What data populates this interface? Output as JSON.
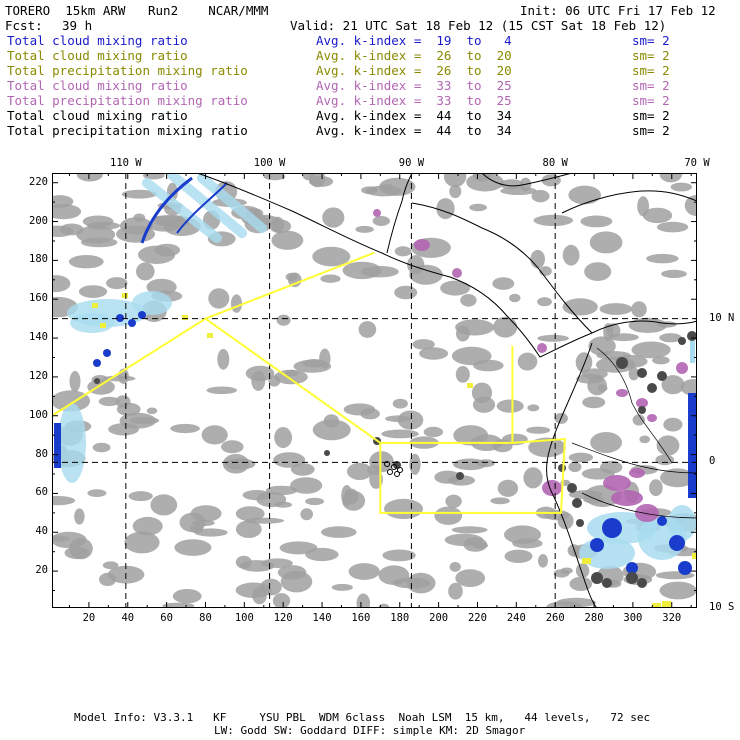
{
  "header": {
    "model": "TORERO  15km ARW   Run2    NCAR/MMM",
    "init": "Init: 06 UTC Fri 17 Feb 12",
    "fcst_label": "Fcst:",
    "fcst_value": "39 h",
    "valid": "Valid: 21 UTC Sat 18 Feb 12 (15 CST Sat 18 Feb 12)"
  },
  "legend": [
    {
      "field": "Total cloud mixing ratio",
      "kindex": "Avg. k-index =  19  to   4",
      "sm": "sm= 2",
      "color": "#1a1acc"
    },
    {
      "field": "Total cloud mixing ratio",
      "kindex": "Avg. k-index =  26  to  20",
      "sm": "sm= 2",
      "color": "#8a8a00"
    },
    {
      "field": "Total precipitation mixing ratio",
      "kindex": "Avg. k-index =  26  to  20",
      "sm": "sm= 2",
      "color": "#8a8a00"
    },
    {
      "field": "Total cloud mixing ratio",
      "kindex": "Avg. k-index =  33  to  25",
      "sm": "sm= 2",
      "color": "#b266b2"
    },
    {
      "field": "Total precipitation mixing ratio",
      "kindex": "Avg. k-index =  33  to  25",
      "sm": "sm= 2",
      "color": "#b266b2"
    },
    {
      "field": "Total cloud mixing ratio",
      "kindex": "Avg. k-index =  44  to  34",
      "sm": "sm= 2",
      "color": "#000000"
    },
    {
      "field": "Total precipitation mixing ratio",
      "kindex": "Avg. k-index =  44  to  34",
      "sm": "sm= 2",
      "color": "#000000"
    }
  ],
  "map": {
    "lon_labels": [
      "110 W",
      "100 W",
      "90 W",
      "80 W",
      "70 W"
    ],
    "lat_labels": [
      "10 N",
      "0",
      "10 S"
    ],
    "grid_x_labels": [
      "20",
      "40",
      "60",
      "80",
      "100",
      "120",
      "140",
      "160",
      "180",
      "200",
      "220",
      "240",
      "260",
      "280",
      "300",
      "320"
    ],
    "grid_y_labels": [
      "220",
      "200",
      "180",
      "160",
      "140",
      "120",
      "100",
      "80",
      "60",
      "40",
      "20"
    ],
    "grid_x_range": [
      1,
      333
    ],
    "grid_y_range": [
      1,
      225
    ],
    "colors": {
      "cloud_gray": "#a0a0a0",
      "coast": "#000000",
      "domain_box": "#ffff33",
      "blue": "#1a3ccc",
      "light_blue": "#a8dcf0",
      "purple": "#b266b2",
      "yellow": "#f0f03c",
      "dark": "#4a4a4a"
    }
  },
  "footer": {
    "line1": "Model Info: V3.3.1   KF     YSU PBL  WDM 6class  Noah LSM  15 km,   44 levels,   72 sec",
    "line2": "LW: Godd SW: Goddard DIFF: simple KM: 2D Smagor"
  }
}
